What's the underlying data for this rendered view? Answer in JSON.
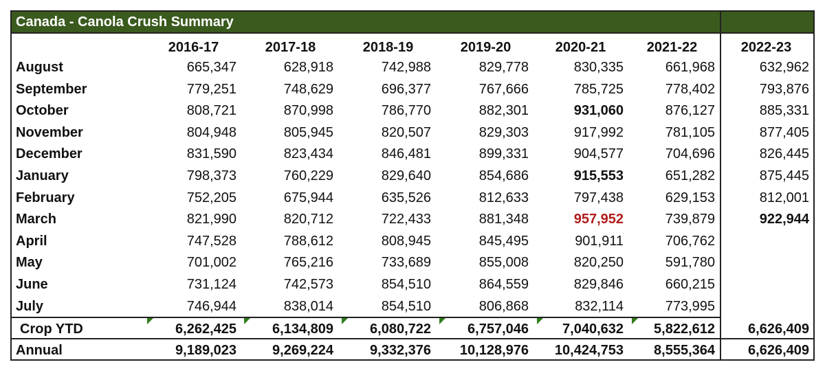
{
  "title": "Canada - Canola Crush Summary",
  "columns": [
    "2016-17",
    "2017-18",
    "2018-19",
    "2019-20",
    "2020-21",
    "2021-22",
    "2022-23"
  ],
  "months": [
    {
      "label": "August",
      "values": [
        "665,347",
        "628,918",
        "742,988",
        "829,778",
        "830,335",
        "661,968",
        "632,962"
      ]
    },
    {
      "label": "September",
      "values": [
        "779,251",
        "748,629",
        "696,377",
        "767,666",
        "785,725",
        "778,402",
        "793,876"
      ]
    },
    {
      "label": "October",
      "values": [
        "808,721",
        "870,998",
        "786,770",
        "882,301",
        "931,060",
        "876,127",
        "885,331"
      ]
    },
    {
      "label": "November",
      "values": [
        "804,948",
        "805,945",
        "820,507",
        "829,303",
        "917,992",
        "781,105",
        "877,405"
      ]
    },
    {
      "label": "December",
      "values": [
        "831,590",
        "823,434",
        "846,481",
        "899,331",
        "904,577",
        "704,696",
        "826,445"
      ]
    },
    {
      "label": "January",
      "values": [
        "798,373",
        "760,229",
        "829,640",
        "854,686",
        "915,553",
        "651,282",
        "875,445"
      ]
    },
    {
      "label": "February",
      "values": [
        "752,205",
        "675,944",
        "635,526",
        "812,633",
        "797,438",
        "629,153",
        "812,001"
      ]
    },
    {
      "label": "March",
      "values": [
        "821,990",
        "820,712",
        "722,433",
        "881,348",
        "957,952",
        "739,879",
        "922,944"
      ]
    },
    {
      "label": "April",
      "values": [
        "747,528",
        "788,612",
        "808,945",
        "845,495",
        "901,911",
        "706,762",
        ""
      ]
    },
    {
      "label": "May",
      "values": [
        "701,002",
        "765,216",
        "733,689",
        "855,008",
        "820,250",
        "591,780",
        ""
      ]
    },
    {
      "label": "June",
      "values": [
        "731,124",
        "742,573",
        "854,510",
        "864,559",
        "829,846",
        "660,215",
        ""
      ]
    },
    {
      "label": "July",
      "values": [
        "746,944",
        "838,014",
        "854,510",
        "806,868",
        "832,114",
        "773,995",
        ""
      ]
    }
  ],
  "crop_ytd": {
    "label": "Crop YTD",
    "values": [
      "6,262,425",
      "6,134,809",
      "6,080,722",
      "6,757,046",
      "7,040,632",
      "5,822,612",
      "6,626,409"
    ]
  },
  "annual": {
    "label": "Annual",
    "values": [
      "9,189,023",
      "9,269,224",
      "9,332,376",
      "10,128,976",
      "10,424,753",
      "8,555,364",
      "6,626,409"
    ]
  },
  "colors": {
    "title_bg": "#3a5a1e",
    "highlight_red": "#b01c1c",
    "marker_green": "#2e7d1a"
  }
}
